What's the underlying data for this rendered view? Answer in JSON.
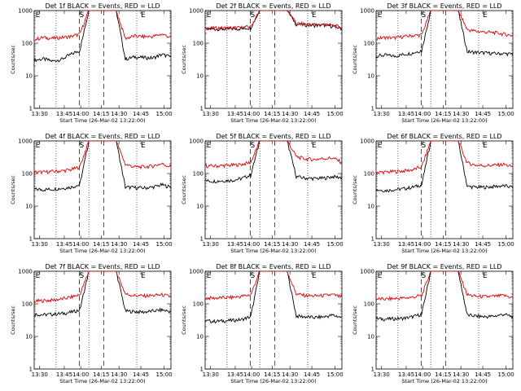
{
  "figure": {
    "panel_title_suffix": " BLACK = Events, RED = LLD",
    "ylabel": "Counts/sec",
    "xlabel_prefix": "Start Time (",
    "start_time": "26-Mar-02 13:22:00",
    "xlabel_suffix": ")"
  },
  "chart_data": [
    {
      "type": "line",
      "title": "Det 1f BLACK = Events, RED = LLD",
      "detector": "Det 1f",
      "ylim": [
        1,
        1000
      ],
      "yscale": "log",
      "ytick_labels": [
        "1",
        "10",
        "100",
        "1000"
      ],
      "xtick_labels": [
        "13:30",
        "13:45",
        "14:00",
        "14:15",
        "14:30",
        "14:45",
        "15:00"
      ],
      "xlabel": "Start Time (26-Mar-02 13:22:00)",
      "ylabel": "Counts/sec",
      "markers": [
        "E",
        "S",
        "E"
      ],
      "series": [
        {
          "name": "Events",
          "color": "#000000",
          "values": [
            30,
            33,
            28,
            32,
            45,
            60,
            1000,
            1000,
            1000,
            1000,
            32,
            38,
            36,
            35,
            45,
            38
          ]
        },
        {
          "name": "LLD",
          "color": "#e00000",
          "values": [
            130,
            150,
            140,
            150,
            160,
            190,
            1000,
            1000,
            1000,
            1000,
            140,
            165,
            160,
            160,
            190,
            150
          ]
        }
      ]
    },
    {
      "type": "line",
      "title": "Det 2f BLACK = Events, RED = LLD",
      "detector": "Det 2f",
      "ylim": [
        1,
        1000
      ],
      "yscale": "log",
      "ytick_labels": [
        "1",
        "10",
        "100",
        "1000"
      ],
      "xtick_labels": [
        "13:30",
        "13:45",
        "14:00",
        "14:15",
        "14:30",
        "14:45",
        "15:00"
      ],
      "xlabel": "Start Time (26-Mar-02 13:22:00)",
      "ylabel": "Counts/sec",
      "markers": [
        "E",
        "S",
        "E"
      ],
      "series": [
        {
          "name": "Events",
          "color": "#000000",
          "values": [
            270,
            270,
            270,
            275,
            280,
            300,
            1000,
            1000,
            1000,
            1000,
            380,
            360,
            350,
            360,
            330,
            280
          ]
        },
        {
          "name": "LLD",
          "color": "#e00000",
          "values": [
            290,
            290,
            290,
            295,
            300,
            320,
            1000,
            1000,
            1000,
            1000,
            400,
            380,
            370,
            380,
            350,
            300
          ]
        }
      ]
    },
    {
      "type": "line",
      "title": "Det 3f BLACK = Events, RED = LLD",
      "detector": "Det 3f",
      "ylim": [
        1,
        1000
      ],
      "yscale": "log",
      "ytick_labels": [
        "1",
        "10",
        "100",
        "1000"
      ],
      "xtick_labels": [
        "13:30",
        "13:45",
        "14:00",
        "14:15",
        "14:30",
        "14:45",
        "15:00"
      ],
      "xlabel": "Start Time (26-Mar-02 13:22:00)",
      "ylabel": "Counts/sec",
      "markers": [
        "E",
        "S",
        "E"
      ],
      "series": [
        {
          "name": "Events",
          "color": "#000000",
          "values": [
            40,
            43,
            40,
            45,
            50,
            60,
            1000,
            1000,
            1000,
            1000,
            55,
            52,
            50,
            48,
            48,
            46
          ]
        },
        {
          "name": "LLD",
          "color": "#e00000",
          "values": [
            140,
            150,
            145,
            160,
            170,
            180,
            1000,
            1000,
            1000,
            1000,
            260,
            230,
            220,
            210,
            190,
            170
          ]
        }
      ]
    },
    {
      "type": "line",
      "title": "Det 4f BLACK = Events, RED = LLD",
      "detector": "Det 4f",
      "ylim": [
        1,
        1000
      ],
      "yscale": "log",
      "ytick_labels": [
        "1",
        "10",
        "100",
        "1000"
      ],
      "xtick_labels": [
        "13:30",
        "13:45",
        "14:00",
        "14:15",
        "14:30",
        "14:45",
        "15:00"
      ],
      "xlabel": "Start Time (26-Mar-02 13:22:00)",
      "ylabel": "Counts/sec",
      "markers": [
        "E",
        "S",
        "E"
      ],
      "series": [
        {
          "name": "Events",
          "color": "#000000",
          "values": [
            33,
            32,
            33,
            35,
            38,
            45,
            1000,
            1000,
            1000,
            1000,
            38,
            37,
            36,
            38,
            45,
            38
          ]
        },
        {
          "name": "LLD",
          "color": "#e00000",
          "values": [
            110,
            110,
            115,
            120,
            130,
            160,
            1000,
            1000,
            1000,
            1000,
            190,
            160,
            160,
            170,
            200,
            160
          ]
        }
      ]
    },
    {
      "type": "line",
      "title": "Det 5f BLACK = Events, RED = LLD",
      "detector": "Det 5f",
      "ylim": [
        1,
        1000
      ],
      "yscale": "log",
      "ytick_labels": [
        "1",
        "10",
        "100",
        "1000"
      ],
      "xtick_labels": [
        "13:30",
        "13:45",
        "14:00",
        "14:15",
        "14:30",
        "14:45",
        "15:00"
      ],
      "xlabel": "Start Time (26-Mar-02 13:22:00)",
      "ylabel": "Counts/sec",
      "markers": [
        "E",
        "S",
        "E"
      ],
      "series": [
        {
          "name": "Events",
          "color": "#000000",
          "values": [
            60,
            58,
            60,
            62,
            70,
            90,
            1000,
            1000,
            1000,
            1000,
            80,
            72,
            70,
            72,
            80,
            75
          ]
        },
        {
          "name": "LLD",
          "color": "#e00000",
          "values": [
            170,
            170,
            175,
            180,
            190,
            220,
            1000,
            1000,
            1000,
            1000,
            330,
            280,
            270,
            290,
            300,
            220
          ]
        }
      ]
    },
    {
      "type": "line",
      "title": "Det 6f BLACK = Events, RED = LLD",
      "detector": "Det 6f",
      "ylim": [
        1,
        1000
      ],
      "yscale": "log",
      "ytick_labels": [
        "1",
        "10",
        "100",
        "1000"
      ],
      "xtick_labels": [
        "13:30",
        "13:45",
        "14:00",
        "14:15",
        "14:30",
        "14:45",
        "15:00"
      ],
      "xlabel": "Start Time (26-Mar-02 13:22:00)",
      "ylabel": "Counts/sec",
      "markers": [
        "E",
        "S",
        "E"
      ],
      "series": [
        {
          "name": "Events",
          "color": "#000000",
          "values": [
            32,
            30,
            32,
            34,
            38,
            45,
            1000,
            1000,
            1000,
            1000,
            40,
            38,
            38,
            40,
            42,
            38
          ]
        },
        {
          "name": "LLD",
          "color": "#e00000",
          "values": [
            110,
            110,
            115,
            120,
            130,
            160,
            1000,
            1000,
            1000,
            1000,
            210,
            180,
            175,
            180,
            190,
            160
          ]
        }
      ]
    },
    {
      "type": "line",
      "title": "Det 7f BLACK = Events, RED = LLD",
      "detector": "Det 7f",
      "ylim": [
        1,
        1000
      ],
      "yscale": "log",
      "ytick_labels": [
        "1",
        "10",
        "100",
        "1000"
      ],
      "xtick_labels": [
        "13:30",
        "13:45",
        "14:00",
        "14:15",
        "14:30",
        "14:45",
        "15:00"
      ],
      "xlabel": "Start Time (26-Mar-02 13:22:00)",
      "ylabel": "Counts/sec",
      "markers": [
        "E",
        "S",
        "E"
      ],
      "series": [
        {
          "name": "Events",
          "color": "#000000",
          "values": [
            48,
            46,
            48,
            50,
            55,
            65,
            1000,
            1000,
            1000,
            1000,
            60,
            58,
            56,
            60,
            65,
            58
          ]
        },
        {
          "name": "LLD",
          "color": "#e00000",
          "values": [
            120,
            125,
            130,
            140,
            160,
            190,
            1000,
            1000,
            1000,
            1000,
            200,
            180,
            175,
            180,
            190,
            165
          ]
        }
      ]
    },
    {
      "type": "line",
      "title": "Det 8f BLACK = Events, RED = LLD",
      "detector": "Det 8f",
      "ylim": [
        1,
        1000
      ],
      "yscale": "log",
      "ytick_labels": [
        "1",
        "10",
        "100",
        "1000"
      ],
      "xtick_labels": [
        "13:30",
        "13:45",
        "14:00",
        "14:15",
        "14:30",
        "14:45",
        "15:00"
      ],
      "xlabel": "Start Time (26-Mar-02 13:22:00)",
      "ylabel": "Counts/sec",
      "markers": [
        "E",
        "S",
        "E"
      ],
      "series": [
        {
          "name": "Events",
          "color": "#000000",
          "values": [
            30,
            29,
            30,
            31,
            33,
            40,
            1000,
            1000,
            1000,
            1000,
            42,
            40,
            38,
            40,
            45,
            38
          ]
        },
        {
          "name": "LLD",
          "color": "#e00000",
          "values": [
            150,
            150,
            155,
            160,
            170,
            190,
            1000,
            1000,
            1000,
            1000,
            200,
            180,
            175,
            180,
            190,
            160
          ]
        }
      ]
    },
    {
      "type": "line",
      "title": "Det 9f BLACK = Events, RED = LLD",
      "detector": "Det 9f",
      "ylim": [
        1,
        1000
      ],
      "yscale": "log",
      "ytick_labels": [
        "1",
        "10",
        "100",
        "1000"
      ],
      "xtick_labels": [
        "13:30",
        "13:45",
        "14:00",
        "14:15",
        "14:30",
        "14:45",
        "15:00"
      ],
      "xlabel": "Start Time (26-Mar-02 13:22:00)",
      "ylabel": "Counts/sec",
      "markers": [
        "E",
        "S",
        "E"
      ],
      "series": [
        {
          "name": "Events",
          "color": "#000000",
          "values": [
            35,
            34,
            35,
            36,
            40,
            48,
            1000,
            1000,
            1000,
            1000,
            45,
            42,
            40,
            42,
            48,
            40
          ]
        },
        {
          "name": "LLD",
          "color": "#e00000",
          "values": [
            140,
            140,
            145,
            150,
            160,
            180,
            1000,
            1000,
            1000,
            1000,
            190,
            170,
            165,
            170,
            180,
            155
          ]
        }
      ]
    }
  ]
}
